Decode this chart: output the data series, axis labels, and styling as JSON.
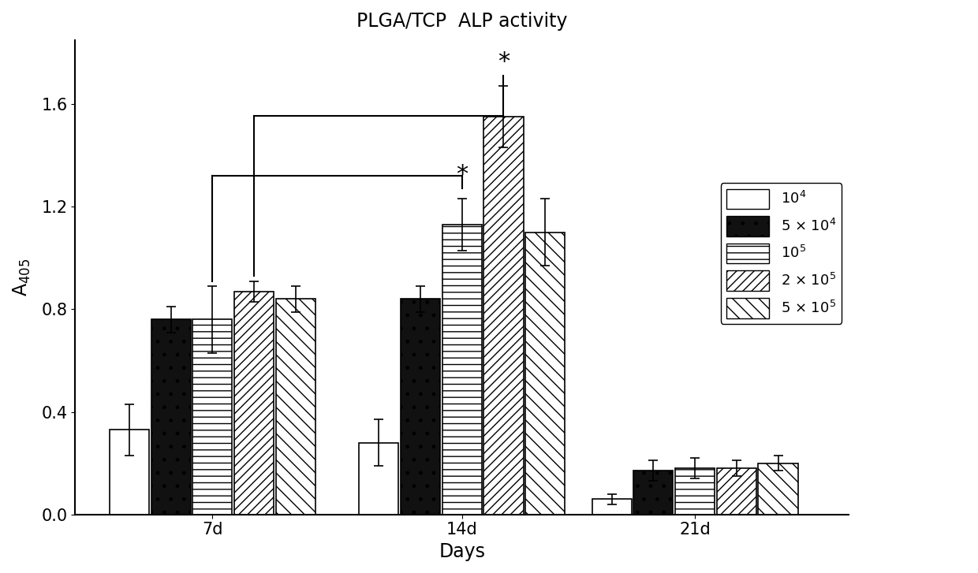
{
  "title": "PLGA/TCP  ALP activity",
  "xlabel": "Days",
  "groups": [
    "7d",
    "14d",
    "21d"
  ],
  "series_labels": [
    "$10^4$",
    "5 $\\times$ $10^4$",
    "$10^5$",
    "2 $\\times$ $10^5$",
    "5 $\\times$ $10^5$"
  ],
  "values": [
    [
      0.33,
      0.76,
      0.76,
      0.87,
      0.84
    ],
    [
      0.28,
      0.84,
      1.13,
      1.55,
      1.1
    ],
    [
      0.06,
      0.17,
      0.18,
      0.18,
      0.2
    ]
  ],
  "errors": [
    [
      0.1,
      0.05,
      0.13,
      0.04,
      0.05
    ],
    [
      0.09,
      0.05,
      0.1,
      0.12,
      0.13
    ],
    [
      0.02,
      0.04,
      0.04,
      0.03,
      0.03
    ]
  ],
  "ylim": [
    0.0,
    1.85
  ],
  "yticks": [
    0.0,
    0.4,
    0.8,
    1.2,
    1.6
  ],
  "background_color": "#ffffff",
  "group_centers": [
    1.4,
    4.4,
    7.2
  ],
  "bar_width": 0.5
}
